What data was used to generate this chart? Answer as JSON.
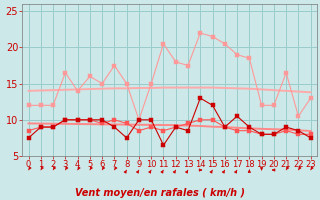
{
  "x": [
    0,
    1,
    2,
    3,
    4,
    5,
    6,
    7,
    8,
    9,
    10,
    11,
    12,
    13,
    14,
    15,
    16,
    17,
    18,
    19,
    20,
    21,
    22,
    23
  ],
  "series": [
    {
      "name": "rafales_high",
      "color": "#ff9999",
      "lw": 0.8,
      "marker": "s",
      "ms": 2.5,
      "values": [
        12,
        12,
        12,
        16.5,
        14,
        16,
        15,
        17.5,
        15,
        10,
        15,
        20.5,
        18,
        17.5,
        22,
        21.5,
        20.5,
        19,
        18.5,
        12,
        12,
        16.5,
        10.5,
        13
      ]
    },
    {
      "name": "trend_rafales",
      "color": "#ffaaaa",
      "lw": 1.4,
      "marker": null,
      "ms": 0,
      "values": [
        14.0,
        14.05,
        14.1,
        14.15,
        14.2,
        14.25,
        14.3,
        14.35,
        14.35,
        14.4,
        14.4,
        14.45,
        14.45,
        14.45,
        14.45,
        14.45,
        14.4,
        14.35,
        14.3,
        14.2,
        14.1,
        14.0,
        13.9,
        13.8
      ]
    },
    {
      "name": "trend_moyen",
      "color": "#ff8888",
      "lw": 1.4,
      "marker": null,
      "ms": 0,
      "values": [
        9.5,
        9.48,
        9.46,
        9.44,
        9.42,
        9.4,
        9.38,
        9.36,
        9.34,
        9.32,
        9.3,
        9.28,
        9.26,
        9.2,
        9.15,
        9.05,
        9.0,
        8.9,
        8.82,
        8.75,
        8.7,
        8.65,
        8.55,
        8.45
      ]
    },
    {
      "name": "vent_moyen2",
      "color": "#ff5555",
      "lw": 0.8,
      "marker": "s",
      "ms": 2.5,
      "values": [
        8.5,
        9,
        9,
        10,
        10,
        10,
        9.5,
        10,
        9.5,
        8.5,
        9,
        8.5,
        9,
        9.5,
        10,
        10,
        9,
        8.5,
        8.5,
        8,
        8,
        8.5,
        8,
        8
      ]
    },
    {
      "name": "vent_moyen",
      "color": "#cc0000",
      "lw": 0.8,
      "marker": "s",
      "ms": 2.5,
      "values": [
        7.5,
        9,
        9,
        10,
        10,
        10,
        10,
        9,
        7.5,
        10,
        10,
        6.5,
        9,
        8.5,
        13,
        12,
        9,
        10.5,
        9,
        8,
        8,
        9,
        8.5,
        7.5
      ]
    }
  ],
  "wind_dirs": [
    225,
    225,
    225,
    225,
    225,
    225,
    225,
    225,
    45,
    45,
    45,
    45,
    45,
    45,
    90,
    45,
    45,
    45,
    0,
    180,
    270,
    225,
    225,
    225
  ],
  "xlim": [
    -0.5,
    23.5
  ],
  "ylim": [
    5,
    26
  ],
  "yticks": [
    5,
    10,
    15,
    20,
    25
  ],
  "xticks": [
    0,
    1,
    2,
    3,
    4,
    5,
    6,
    7,
    8,
    9,
    10,
    11,
    12,
    13,
    14,
    15,
    16,
    17,
    18,
    19,
    20,
    21,
    22,
    23
  ],
  "xlabel": "Vent moyen/en rafales ( km/h )",
  "xlabel_color": "#cc0000",
  "xlabel_fontsize": 7,
  "bg_color": "#cce8e8",
  "grid_color": "#99cccc",
  "tick_color": "#cc0000",
  "tick_fontsize": 6,
  "ytick_fontsize": 7
}
